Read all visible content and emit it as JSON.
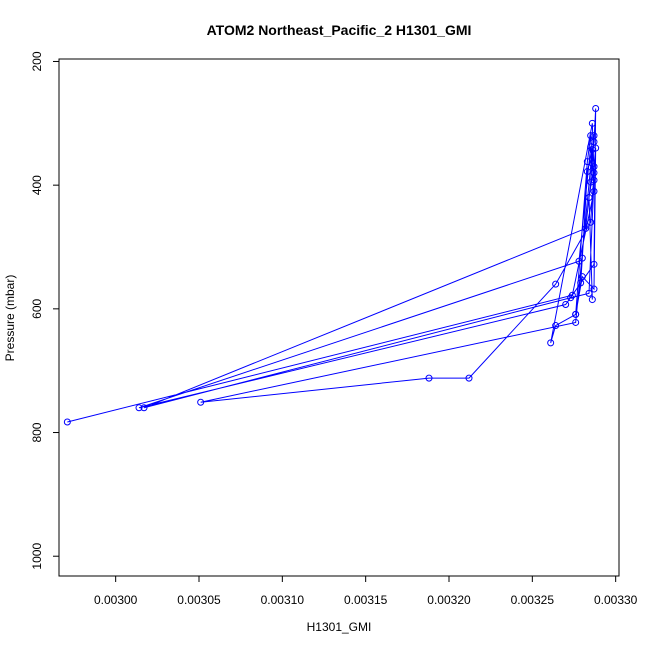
{
  "chart_data": {
    "type": "line",
    "title": "ATOM2 Northeast_Pacific_2 H1301_GMI",
    "xlabel": "H1301_GMI",
    "ylabel": "Pressure (mbar)",
    "xlim": [
      0.002966,
      0.003302
    ],
    "ylim": [
      1032,
      196
    ],
    "y_axis_inverted": true,
    "x_ticks": [
      0.003,
      0.00305,
      0.0031,
      0.00315,
      0.0032,
      0.00325,
      0.0033
    ],
    "x_tick_labels": [
      "0.00300",
      "0.00305",
      "0.00310",
      "0.00315",
      "0.00320",
      "0.00325",
      "0.00330"
    ],
    "y_ticks": [
      200,
      400,
      600,
      800,
      1000
    ],
    "y_tick_labels": [
      "200",
      "400",
      "600",
      "800",
      "1000"
    ],
    "grid": false,
    "legend": "none",
    "color": "#0000ff",
    "marker": "open-circle",
    "series": [
      {
        "x": [
          0.002971,
          0.003274,
          0.003287,
          0.003285,
          0.003283,
          0.003276,
          0.003264,
          0.003261,
          0.003286,
          0.003287,
          0.003285,
          0.003264,
          0.003212,
          0.003188,
          0.003051,
          0.003276,
          0.003286,
          0.003286,
          0.003287,
          0.003285,
          0.003282,
          0.003017,
          0.003273,
          0.003284,
          0.003287,
          0.003285,
          0.003278,
          0.003014,
          0.00327,
          0.003287,
          0.003288,
          0.003287,
          0.003283,
          0.00328,
          0.003279,
          0.003276,
          0.00328,
          0.003287,
          0.003288,
          0.003287,
          0.003284,
          0.003286
        ],
        "y": [
          783,
          578,
          410,
          320,
          362,
          609,
          627,
          655,
          300,
          380,
          460,
          560,
          712,
          712,
          751,
          622,
          342,
          365,
          320,
          395,
          470,
          760,
          582,
          575,
          392,
          338,
          523,
          760,
          593,
          528,
          276,
          330,
          378,
          518,
          558,
          609,
          548,
          568,
          340,
          370,
          420,
          585
        ]
      }
    ]
  }
}
